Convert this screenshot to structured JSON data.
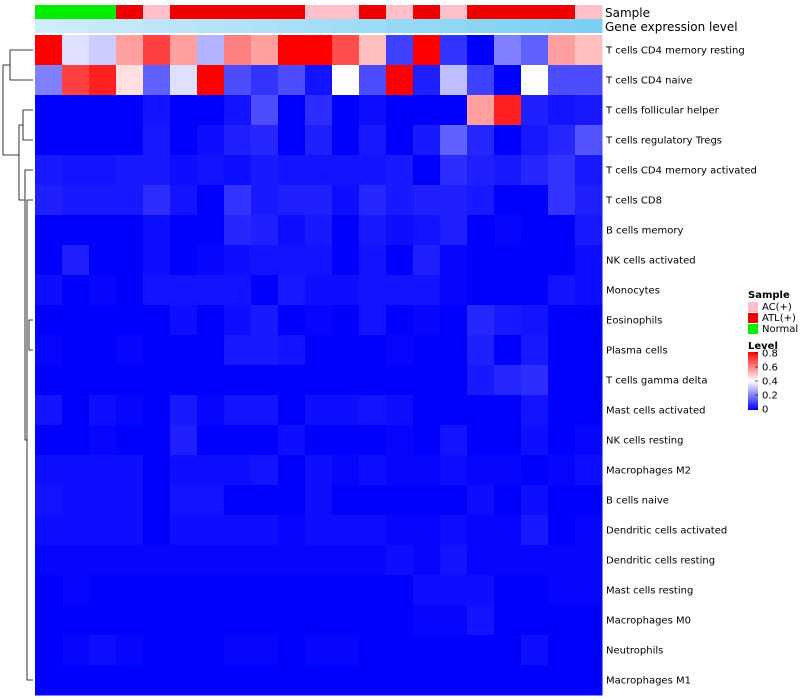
{
  "chart_data": {
    "type": "heatmap",
    "title": "",
    "annotations": {
      "sample_label": "Sample",
      "expression_label": "Gene expression level",
      "sample_groups": [
        "Normal",
        "Normal",
        "Normal",
        "ATL(+)",
        "AC(+)",
        "ATL(+)",
        "ATL(+)",
        "ATL(+)",
        "ATL(+)",
        "ATL(+)",
        "AC(+)",
        "AC(+)",
        "ATL(+)",
        "AC(+)",
        "ATL(+)",
        "AC(+)",
        "ATL(+)",
        "ATL(+)",
        "ATL(+)",
        "ATL(+)",
        "AC(+)"
      ],
      "expression_levels": [
        0.1,
        0.13,
        0.16,
        0.19,
        0.22,
        0.25,
        0.28,
        0.31,
        0.34,
        0.37,
        0.4,
        0.43,
        0.46,
        0.49,
        0.52,
        0.55,
        0.58,
        0.61,
        0.64,
        0.67,
        0.7
      ]
    },
    "rows": [
      {
        "name": "T cells CD4 memory resting",
        "values": [
          0.8,
          0.35,
          0.32,
          0.55,
          0.7,
          0.55,
          0.28,
          0.6,
          0.55,
          0.8,
          0.8,
          0.68,
          0.5,
          0.1,
          0.8,
          0.08,
          0.0,
          0.2,
          0.15,
          0.55,
          0.5
        ]
      },
      {
        "name": "T cells CD4 naive",
        "values": [
          0.2,
          0.7,
          0.75,
          0.45,
          0.15,
          0.35,
          0.8,
          0.12,
          0.08,
          0.12,
          0.03,
          0.4,
          0.12,
          0.8,
          0.05,
          0.3,
          0.1,
          0.0,
          0.4,
          0.12,
          0.12
        ]
      },
      {
        "name": "T cells follicular helper",
        "values": [
          0.0,
          0.0,
          0.0,
          0.0,
          0.03,
          0.0,
          0.0,
          0.03,
          0.12,
          0.0,
          0.07,
          0.0,
          0.02,
          0.0,
          0.0,
          0.0,
          0.55,
          0.75,
          0.05,
          0.03,
          0.04
        ]
      },
      {
        "name": "T cells regulatory  Tregs",
        "values": [
          0.0,
          0.0,
          0.0,
          0.0,
          0.04,
          0.0,
          0.02,
          0.05,
          0.06,
          0.0,
          0.05,
          0.0,
          0.04,
          0.0,
          0.04,
          0.15,
          0.06,
          0.0,
          0.04,
          0.06,
          0.13
        ]
      },
      {
        "name": "T cells CD4 memory activated",
        "values": [
          0.04,
          0.03,
          0.03,
          0.04,
          0.04,
          0.02,
          0.03,
          0.02,
          0.04,
          0.03,
          0.03,
          0.03,
          0.03,
          0.04,
          0.0,
          0.07,
          0.05,
          0.04,
          0.06,
          0.08,
          0.04
        ]
      },
      {
        "name": "T cells CD8",
        "values": [
          0.05,
          0.04,
          0.04,
          0.04,
          0.07,
          0.03,
          0.0,
          0.08,
          0.04,
          0.05,
          0.05,
          0.02,
          0.06,
          0.04,
          0.05,
          0.05,
          0.04,
          0.0,
          0.0,
          0.08,
          0.05
        ]
      },
      {
        "name": "B cells memory",
        "values": [
          0.0,
          0.0,
          0.0,
          0.0,
          0.02,
          0.0,
          0.0,
          0.06,
          0.05,
          0.02,
          0.04,
          0.0,
          0.04,
          0.02,
          0.03,
          0.05,
          0.0,
          0.01,
          0.0,
          0.0,
          0.04
        ]
      },
      {
        "name": "NK cells activated",
        "values": [
          0.0,
          0.05,
          0.0,
          0.0,
          0.02,
          0.0,
          0.01,
          0.02,
          0.03,
          0.03,
          0.03,
          0.0,
          0.03,
          0.0,
          0.05,
          0.01,
          0.0,
          0.0,
          0.0,
          0.0,
          0.02
        ]
      },
      {
        "name": "Monocytes",
        "values": [
          0.02,
          0.0,
          0.01,
          0.0,
          0.03,
          0.03,
          0.03,
          0.03,
          0.0,
          0.04,
          0.02,
          0.02,
          0.03,
          0.03,
          0.03,
          0.01,
          0.0,
          0.0,
          0.0,
          0.03,
          0.02
        ]
      },
      {
        "name": "Eosinophils",
        "values": [
          0.0,
          0.0,
          0.0,
          0.0,
          0.0,
          0.02,
          0.0,
          0.02,
          0.04,
          0.0,
          0.01,
          0.0,
          0.03,
          0.0,
          0.01,
          0.0,
          0.06,
          0.04,
          0.03,
          0.0,
          0.0
        ]
      },
      {
        "name": "Plasma cells",
        "values": [
          0.01,
          0.0,
          0.0,
          0.01,
          0.0,
          0.0,
          0.0,
          0.04,
          0.04,
          0.03,
          0.0,
          0.0,
          0.0,
          0.01,
          0.0,
          0.0,
          0.05,
          0.0,
          0.04,
          0.0,
          0.0
        ]
      },
      {
        "name": "T cells gamma delta",
        "values": [
          0.0,
          0.0,
          0.0,
          0.0,
          0.0,
          0.0,
          0.0,
          0.0,
          0.0,
          0.0,
          0.0,
          0.0,
          0.0,
          0.0,
          0.0,
          0.0,
          0.04,
          0.06,
          0.07,
          0.0,
          0.0
        ]
      },
      {
        "name": "Mast cells activated",
        "values": [
          0.03,
          0.0,
          0.02,
          0.01,
          0.0,
          0.04,
          0.01,
          0.03,
          0.03,
          0.0,
          0.02,
          0.02,
          0.03,
          0.02,
          0.0,
          0.0,
          0.0,
          0.0,
          0.03,
          0.0,
          0.0
        ]
      },
      {
        "name": "NK cells resting",
        "values": [
          0.0,
          0.0,
          0.01,
          0.0,
          0.0,
          0.05,
          0.0,
          0.0,
          0.0,
          0.02,
          0.0,
          0.0,
          0.0,
          0.01,
          0.0,
          0.03,
          0.0,
          0.0,
          0.02,
          0.0,
          0.01
        ]
      },
      {
        "name": "Macrophages M2",
        "values": [
          0.02,
          0.02,
          0.02,
          0.02,
          0.0,
          0.02,
          0.02,
          0.02,
          0.03,
          0.0,
          0.02,
          0.01,
          0.02,
          0.01,
          0.01,
          0.02,
          0.01,
          0.01,
          0.0,
          0.01,
          0.02
        ]
      },
      {
        "name": "B cells naive",
        "values": [
          0.03,
          0.02,
          0.02,
          0.02,
          0.0,
          0.03,
          0.03,
          0.0,
          0.0,
          0.0,
          0.02,
          0.0,
          0.0,
          0.0,
          0.0,
          0.0,
          0.02,
          0.0,
          0.02,
          0.0,
          0.0
        ]
      },
      {
        "name": "Dendritic cells activated",
        "values": [
          0.02,
          0.02,
          0.02,
          0.02,
          0.0,
          0.02,
          0.02,
          0.02,
          0.02,
          0.01,
          0.02,
          0.02,
          0.02,
          0.01,
          0.01,
          0.02,
          0.01,
          0.01,
          0.04,
          0.0,
          0.01
        ]
      },
      {
        "name": "Dendritic cells resting",
        "values": [
          0.01,
          0.01,
          0.01,
          0.01,
          0.01,
          0.01,
          0.01,
          0.01,
          0.01,
          0.01,
          0.01,
          0.01,
          0.01,
          0.02,
          0.01,
          0.03,
          0.01,
          0.01,
          0.01,
          0.01,
          0.01
        ]
      },
      {
        "name": "Mast cells resting",
        "values": [
          0.0,
          0.01,
          0.0,
          0.0,
          0.0,
          0.0,
          0.0,
          0.0,
          0.0,
          0.0,
          0.0,
          0.0,
          0.0,
          0.0,
          0.02,
          0.02,
          0.02,
          0.0,
          0.0,
          0.01,
          0.01
        ]
      },
      {
        "name": "Macrophages M0",
        "values": [
          0.0,
          0.0,
          0.0,
          0.0,
          0.0,
          0.0,
          0.0,
          0.0,
          0.0,
          0.0,
          0.0,
          0.0,
          0.0,
          0.0,
          0.01,
          0.01,
          0.03,
          0.0,
          0.0,
          0.0,
          0.0
        ]
      },
      {
        "name": "Neutrophils",
        "values": [
          0.0,
          0.01,
          0.02,
          0.01,
          0.0,
          0.0,
          0.0,
          0.01,
          0.01,
          0.0,
          0.01,
          0.01,
          0.0,
          0.0,
          0.0,
          0.0,
          0.0,
          0.0,
          0.02,
          0.0,
          0.0
        ]
      },
      {
        "name": "Macrophages M1",
        "values": [
          0.0,
          0.0,
          0.0,
          0.0,
          0.0,
          0.0,
          0.0,
          0.0,
          0.0,
          0.0,
          0.0,
          0.0,
          0.0,
          0.0,
          0.0,
          0.0,
          0.0,
          0.0,
          0.0,
          0.0,
          0.0
        ]
      }
    ],
    "sample_legend": {
      "title": "Sample",
      "items": [
        {
          "label": "AC(+)",
          "color": "#FFC0CB"
        },
        {
          "label": "ATL(+)",
          "color": "#EE0000"
        },
        {
          "label": "Normal",
          "color": "#00EE00"
        }
      ]
    },
    "level_legend": {
      "title": "Level",
      "range": [
        0,
        0.8
      ],
      "ticks": [
        "0.8",
        "0.6",
        "0.4",
        "0.2",
        "0"
      ],
      "tick_values": [
        0.8,
        0.6,
        0.4,
        0.2,
        0
      ]
    },
    "colors": {
      "low": "#0000FF",
      "mid": "#FFFFFF",
      "high": "#FF0000",
      "expr_low": "#DDF1FB",
      "expr_high": "#4FC1EE",
      "dendrogram": "#000000"
    }
  }
}
